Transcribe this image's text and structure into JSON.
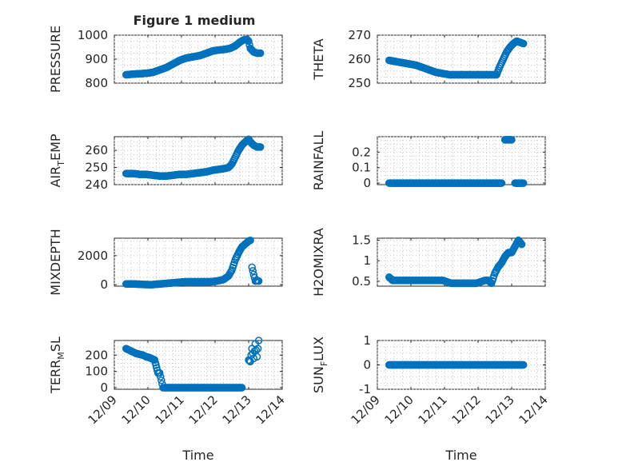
{
  "figure_title": "Figure 1 medium",
  "colors": {
    "marker": "#0072bd",
    "axes": "#262626",
    "grid": "#c8c8c8",
    "background": "#ffffff"
  },
  "chart_data": [
    {
      "type": "scatter",
      "ylabel": "PRESSURE",
      "xlabel": "",
      "xlim": [
        "12/09",
        "12/14"
      ],
      "ylim": [
        800,
        1000
      ],
      "yticks": [
        "800",
        "900",
        "1000"
      ],
      "xticks": [],
      "grid": true,
      "marker": "circle",
      "series": [
        {
          "x": [
            9.35,
            9.6,
            9.85,
            10.0,
            10.15,
            10.35,
            10.55,
            10.75,
            10.95,
            11.15,
            11.35,
            11.55,
            11.75,
            11.95,
            12.1,
            12.25,
            12.45,
            12.6,
            12.75,
            12.85,
            12.95,
            13.0,
            13.05,
            13.15,
            13.25,
            13.35
          ],
          "y": [
            835,
            838,
            840,
            842,
            845,
            855,
            865,
            880,
            895,
            905,
            910,
            915,
            925,
            935,
            938,
            940,
            945,
            955,
            972,
            980,
            982,
            975,
            945,
            930,
            925,
            925
          ]
        }
      ]
    },
    {
      "type": "scatter",
      "ylabel": "THETA",
      "xlabel": "",
      "xlim": [
        "12/09",
        "12/14"
      ],
      "ylim": [
        250,
        270
      ],
      "yticks": [
        "250",
        "260",
        "270"
      ],
      "xticks": [],
      "grid": true,
      "marker": "circle",
      "series": [
        {
          "x": [
            9.35,
            9.55,
            9.75,
            9.95,
            10.15,
            10.35,
            10.55,
            10.75,
            10.95,
            11.15,
            11.35,
            11.55,
            11.75,
            11.95,
            12.15,
            12.35,
            12.45,
            12.55,
            12.65,
            12.75,
            12.85,
            12.95,
            13.05,
            13.15,
            13.25,
            13.35
          ],
          "y": [
            259.5,
            259,
            258.5,
            258,
            257.5,
            256.5,
            255.5,
            254.5,
            254,
            253.5,
            253.5,
            253.5,
            253.5,
            253.5,
            253.5,
            253.5,
            253.5,
            253.5,
            257,
            260,
            263,
            265,
            266.5,
            267.5,
            267,
            266.5
          ]
        }
      ]
    },
    {
      "type": "scatter",
      "ylabel": "AIR_TEMP",
      "xlabel": "",
      "xlim": [
        "12/09",
        "12/14"
      ],
      "ylim": [
        240,
        268
      ],
      "yticks": [
        "240",
        "250",
        "260"
      ],
      "xticks": [],
      "grid": true,
      "marker": "circle",
      "series": [
        {
          "x": [
            9.35,
            9.55,
            9.75,
            9.95,
            10.15,
            10.35,
            10.55,
            10.75,
            10.95,
            11.15,
            11.35,
            11.55,
            11.75,
            11.95,
            12.15,
            12.3,
            12.4,
            12.5,
            12.6,
            12.7,
            12.8,
            12.9,
            13.0,
            13.05,
            13.15,
            13.25,
            13.35
          ],
          "y": [
            246.5,
            246.5,
            246,
            246,
            245.5,
            245,
            245,
            245.5,
            246,
            246,
            246.5,
            247,
            247.5,
            248.5,
            249,
            249.5,
            250,
            252,
            256,
            260,
            263,
            265,
            266.5,
            265,
            263,
            262,
            262
          ]
        }
      ]
    },
    {
      "type": "scatter",
      "ylabel": "RAINFALL",
      "xlabel": "",
      "xlim": [
        "12/09",
        "12/14"
      ],
      "ylim": [
        -0.01,
        0.3
      ],
      "yticks": [
        "0",
        "0.1",
        "0.2"
      ],
      "xticks": [],
      "grid": true,
      "marker": "circle",
      "series": [
        {
          "x": [
            9.35,
            9.6,
            9.85,
            10.1,
            10.35,
            10.6,
            10.85,
            11.1,
            11.35,
            11.6,
            11.85,
            12.1,
            12.35,
            12.55,
            12.7,
            12.8,
            12.9,
            13.0,
            13.1,
            13.2,
            13.3,
            13.35
          ],
          "y": [
            0,
            0,
            0,
            0,
            0,
            0,
            0,
            0,
            0,
            0,
            0,
            0,
            0,
            0,
            0,
            0.28,
            0.28,
            0.28,
            0,
            0,
            0,
            0
          ]
        }
      ]
    },
    {
      "type": "scatter",
      "ylabel": "MIXDEPTH",
      "xlabel": "",
      "xlim": [
        "12/09",
        "12/14"
      ],
      "ylim": [
        -100,
        3200
      ],
      "yticks": [
        "0",
        "2000"
      ],
      "xticks": [],
      "grid": true,
      "marker": "circle",
      "series": [
        {
          "x": [
            9.35,
            9.6,
            9.85,
            10.1,
            10.35,
            10.6,
            10.85,
            11.1,
            11.35,
            11.6,
            11.85,
            12.05,
            12.25,
            12.4,
            12.5,
            12.6,
            12.7,
            12.8,
            12.9,
            13.0,
            13.05,
            13.1,
            13.15,
            13.2,
            13.25,
            13.3
          ],
          "y": [
            50,
            50,
            20,
            0,
            50,
            100,
            150,
            200,
            200,
            200,
            200,
            250,
            350,
            600,
            1000,
            1700,
            2200,
            2600,
            2800,
            3000,
            3050,
            1200,
            700,
            250,
            300,
            250
          ]
        }
      ]
    },
    {
      "type": "scatter",
      "ylabel": "H2OMIXRA",
      "xlabel": "",
      "xlim": [
        "12/09",
        "12/14"
      ],
      "ylim": [
        0.38,
        1.55
      ],
      "yticks": [
        "0.5",
        "1",
        "1.5"
      ],
      "xticks": [],
      "grid": true,
      "marker": "circle",
      "series": [
        {
          "x": [
            9.35,
            9.45,
            9.7,
            9.95,
            10.2,
            10.45,
            10.7,
            10.95,
            11.2,
            11.45,
            11.7,
            11.95,
            12.2,
            12.3,
            12.4,
            12.5,
            12.6,
            12.7,
            12.8,
            12.9,
            13.0,
            13.1,
            13.2,
            13.3
          ],
          "y": [
            0.6,
            0.52,
            0.52,
            0.52,
            0.52,
            0.52,
            0.52,
            0.52,
            0.45,
            0.45,
            0.45,
            0.45,
            0.52,
            0.52,
            0.45,
            0.7,
            0.85,
            0.95,
            1.1,
            1.2,
            1.2,
            1.35,
            1.5,
            1.4
          ]
        }
      ]
    },
    {
      "type": "scatter",
      "ylabel": "TERR_MSL",
      "xlabel": "Time",
      "xlim": [
        "12/09",
        "12/14"
      ],
      "ylim": [
        -10,
        290
      ],
      "yticks": [
        "0",
        "100",
        "200"
      ],
      "xticks": [
        "12/09",
        "12/10",
        "12/11",
        "12/12",
        "12/13",
        "12/14"
      ],
      "grid": true,
      "marker": "circle",
      "series": [
        {
          "x": [
            9.35,
            9.45,
            9.55,
            9.65,
            9.75,
            9.85,
            9.95,
            10.05,
            10.1,
            10.2,
            10.3,
            10.35,
            10.45,
            10.6,
            10.8,
            11.0,
            11.2,
            11.4,
            11.6,
            11.8,
            12.0,
            12.2,
            12.4,
            12.6,
            12.8,
            13.0,
            13.05,
            13.1,
            13.15,
            13.2,
            13.25,
            13.3
          ],
          "y": [
            240,
            230,
            220,
            210,
            205,
            200,
            190,
            185,
            180,
            170,
            90,
            90,
            0,
            0,
            0,
            0,
            0,
            0,
            0,
            0,
            0,
            0,
            0,
            0,
            0,
            170,
            160,
            240,
            180,
            270,
            190,
            290
          ]
        }
      ]
    },
    {
      "type": "scatter",
      "ylabel": "SUN_FLUX",
      "xlabel": "Time",
      "xlim": [
        "12/09",
        "12/14"
      ],
      "ylim": [
        -1,
        1
      ],
      "yticks": [
        "-1",
        "0",
        "1"
      ],
      "xticks": [
        "12/09",
        "12/10",
        "12/11",
        "12/12",
        "12/13",
        "12/14"
      ],
      "grid": true,
      "marker": "circle",
      "series": [
        {
          "x": [
            9.35,
            9.6,
            9.85,
            10.1,
            10.35,
            10.6,
            10.85,
            11.1,
            11.35,
            11.6,
            11.85,
            12.1,
            12.35,
            12.6,
            12.85,
            13.1,
            13.35
          ],
          "y": [
            0,
            0,
            0,
            0,
            0,
            0,
            0,
            0,
            0,
            0,
            0,
            0,
            0,
            0,
            0,
            0,
            0
          ]
        }
      ]
    }
  ]
}
